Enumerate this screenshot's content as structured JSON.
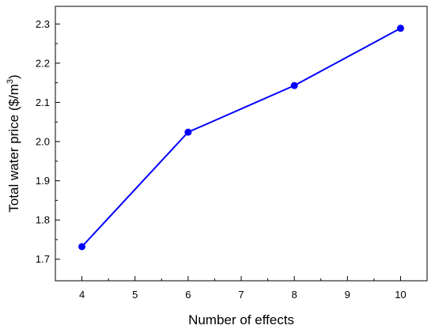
{
  "chart_data": {
    "type": "line",
    "xlabel": "Number of effects",
    "ylabel": {
      "prefix": "Total water price ($/m",
      "sup": "3",
      "suffix": ")"
    },
    "x": [
      4,
      6,
      8,
      10
    ],
    "series": [
      {
        "values": [
          1.732,
          2.024,
          2.143,
          2.289
        ],
        "color": "#0000ff",
        "marker": "circle"
      }
    ],
    "xlim": [
      3.5,
      10.5
    ],
    "ylim": [
      1.645,
      2.345
    ],
    "xticks": [
      4,
      5,
      6,
      7,
      8,
      9,
      10
    ],
    "xtick_labels": [
      "4",
      "5",
      "6",
      "7",
      "8",
      "9",
      "10"
    ],
    "yticks": [
      1.7,
      1.8,
      1.9,
      2.0,
      2.1,
      2.2,
      2.3
    ],
    "ytick_labels": [
      "1.7",
      "1.8",
      "1.9",
      "2.0",
      "2.1",
      "2.2",
      "2.3"
    ],
    "grid": false,
    "legend": "none"
  }
}
